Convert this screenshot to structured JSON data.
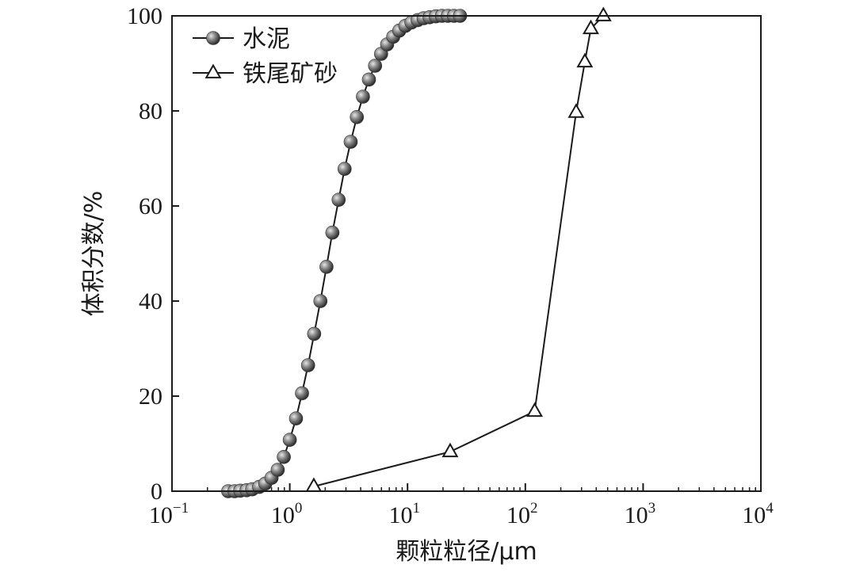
{
  "chart_data": {
    "type": "line",
    "x_scale": "log",
    "xlim": [
      0.1,
      10000
    ],
    "ylim": [
      0,
      100
    ],
    "xlabel": "颗粒粒径/μm",
    "ylabel": "体积分数/%",
    "x_ticks": [
      {
        "value": 0.1,
        "base": "10",
        "exp": "−1"
      },
      {
        "value": 1,
        "base": "10",
        "exp": "0"
      },
      {
        "value": 10,
        "base": "10",
        "exp": "1"
      },
      {
        "value": 100,
        "base": "10",
        "exp": "2"
      },
      {
        "value": 1000,
        "base": "10",
        "exp": "3"
      },
      {
        "value": 10000,
        "base": "10",
        "exp": "4"
      }
    ],
    "y_ticks": [
      "0",
      "20",
      "40",
      "60",
      "80",
      "100"
    ],
    "legend_position": "top-left",
    "grid": false,
    "series": [
      {
        "name": "水泥",
        "marker": "sphere",
        "color": "#555555",
        "x": [
          0.3,
          0.34,
          0.38,
          0.43,
          0.48,
          0.55,
          0.62,
          0.7,
          0.79,
          0.89,
          1.0,
          1.13,
          1.27,
          1.43,
          1.61,
          1.82,
          2.05,
          2.3,
          2.6,
          2.92,
          3.29,
          3.71,
          4.18,
          4.7,
          5.3,
          5.96,
          6.71,
          7.56,
          8.51,
          9.59,
          10.8,
          12.2,
          13.7,
          15.4,
          17.4,
          19.6,
          22.0,
          24.8,
          27.9
        ],
        "y": [
          0.0,
          0.0,
          0.1,
          0.2,
          0.4,
          0.9,
          1.6,
          2.8,
          4.5,
          7.2,
          10.8,
          15.3,
          20.6,
          26.5,
          33.1,
          40.0,
          47.2,
          54.4,
          61.3,
          67.8,
          73.5,
          78.7,
          83.0,
          86.6,
          89.5,
          92.0,
          94.0,
          95.6,
          96.9,
          97.9,
          98.6,
          99.1,
          99.5,
          99.7,
          99.9,
          100.0,
          100.0,
          100.0,
          100.0
        ]
      },
      {
        "name": "铁尾矿砂",
        "marker": "triangle",
        "color": "#1a1a1a",
        "x": [
          1.6,
          23,
          120,
          270,
          320,
          360,
          460
        ],
        "y": [
          1.0,
          8.3,
          16.8,
          79.7,
          90.3,
          97.3,
          100.0
        ]
      }
    ]
  }
}
